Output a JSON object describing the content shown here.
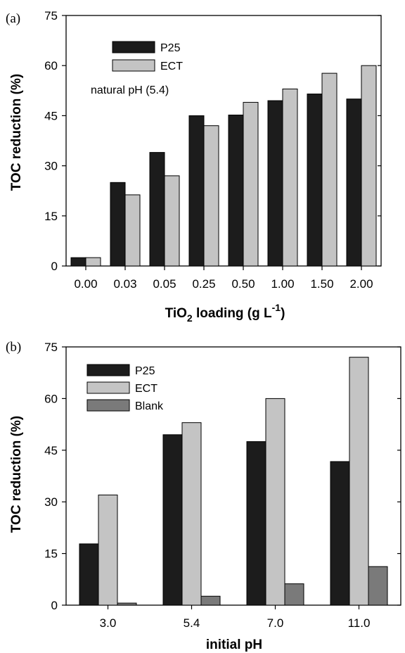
{
  "chart_data": [
    {
      "type": "bar",
      "panel_label": "(a)",
      "categories": [
        "0.00",
        "0.03",
        "0.05",
        "0.25",
        "0.50",
        "1.00",
        "1.50",
        "2.00"
      ],
      "series": [
        {
          "name": "P25",
          "color": "#1c1c1c",
          "values": [
            2.5,
            25,
            34,
            45,
            45.2,
            49.5,
            51.5,
            50
          ]
        },
        {
          "name": "ECT",
          "color": "#c4c4c4",
          "values": [
            2.5,
            21.3,
            27,
            42,
            49,
            53,
            57.7,
            60
          ]
        }
      ],
      "annotation": "natural pH (5.4)",
      "xlabel": {
        "main": "TiO",
        "sub": "2",
        "mid": " loading (g L",
        "sup": "-1",
        "end": ")"
      },
      "ylabel": "TOC reduction (%)",
      "ylim": [
        0,
        75
      ],
      "yticks": [
        "0",
        "15",
        "30",
        "45",
        "60",
        "75"
      ],
      "legend_position": "top-left",
      "grid": false
    },
    {
      "type": "bar",
      "panel_label": "(b)",
      "categories": [
        "3.0",
        "5.4",
        "7.0",
        "11.0"
      ],
      "series": [
        {
          "name": "P25",
          "color": "#1c1c1c",
          "values": [
            17.8,
            49.5,
            47.5,
            41.7
          ]
        },
        {
          "name": "ECT",
          "color": "#c4c4c4",
          "values": [
            32,
            53,
            60,
            72
          ]
        },
        {
          "name": "Blank",
          "color": "#7a7a7a",
          "values": [
            0.6,
            2.6,
            6.2,
            11.2
          ]
        }
      ],
      "xlabel": "initial pH",
      "ylabel": "TOC reduction (%)",
      "ylim": [
        0,
        75
      ],
      "yticks": [
        "0",
        "15",
        "30",
        "45",
        "60",
        "75"
      ],
      "legend_position": "top-left",
      "grid": false
    }
  ]
}
